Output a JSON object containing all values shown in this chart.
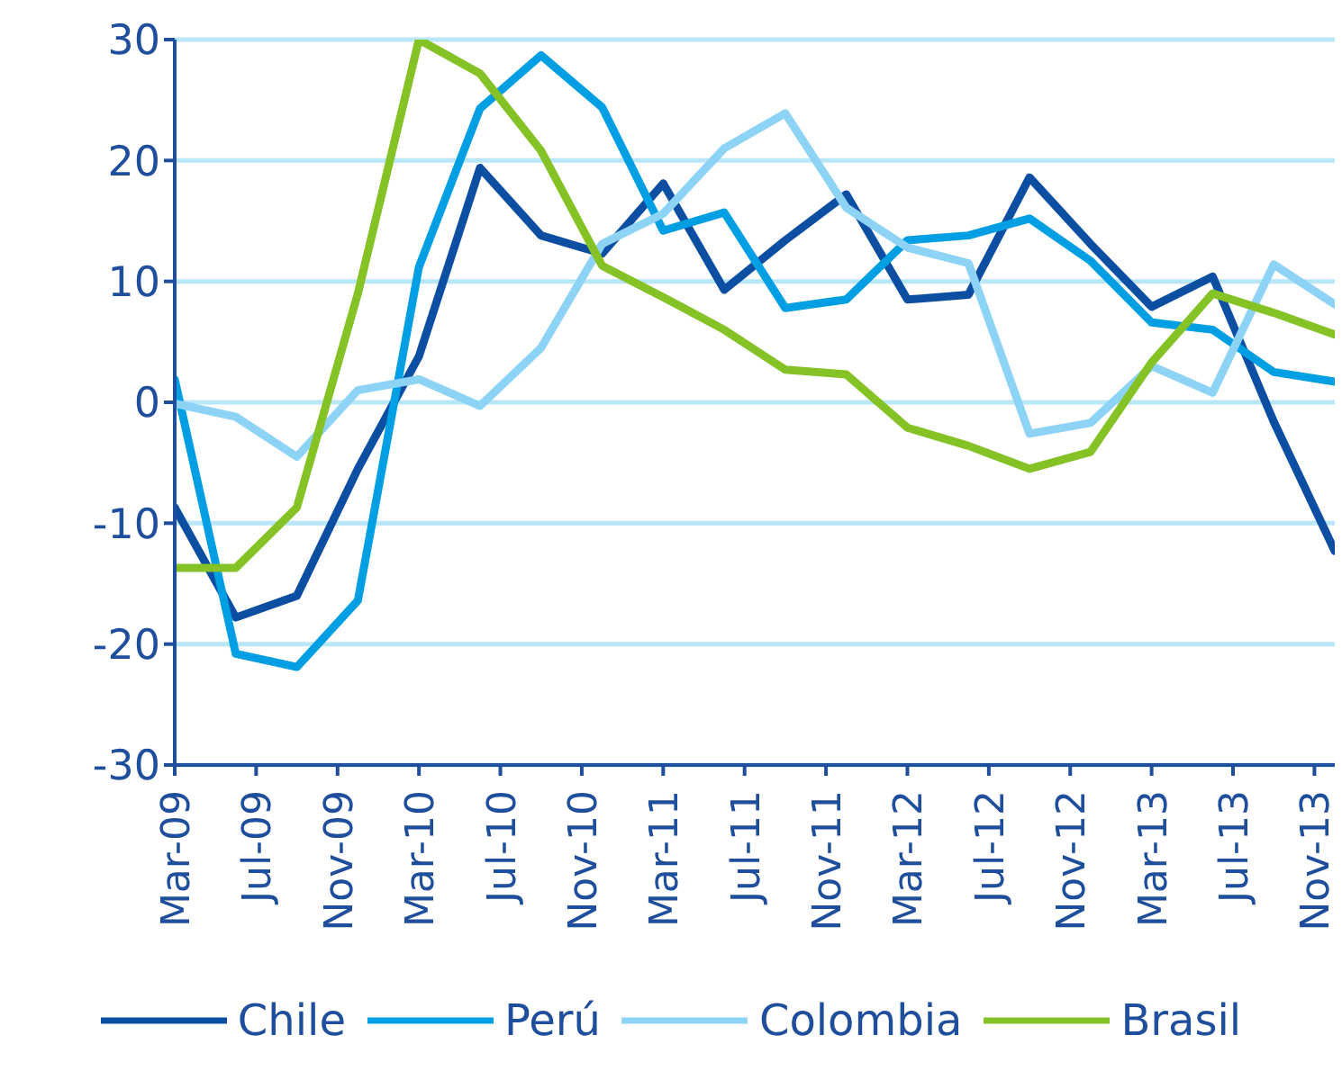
{
  "chart_data": {
    "type": "line",
    "x": [
      "2009-03",
      "2009-06",
      "2009-09",
      "2009-12",
      "2010-03",
      "2010-06",
      "2010-09",
      "2010-12",
      "2011-03",
      "2011-06",
      "2011-09",
      "2011-12",
      "2012-03",
      "2012-06",
      "2012-09",
      "2012-12",
      "2013-03",
      "2013-06",
      "2013-09",
      "2013-12"
    ],
    "series": [
      {
        "name": "Chile",
        "color": "#0b4ea2",
        "values": [
          -8.7,
          -17.8,
          -16,
          -5.5,
          3.8,
          19.4,
          13.8,
          12.3,
          18.1,
          9.3,
          13.4,
          17.2,
          8.5,
          8.9,
          18.6,
          13.1,
          7.9,
          10.4,
          -1.6,
          -12.3
        ]
      },
      {
        "name": "Perú",
        "color": "#009fe3",
        "values": [
          1.9,
          -20.8,
          -21.9,
          -16.4,
          11.2,
          24.3,
          28.7,
          24.4,
          14.2,
          15.7,
          7.8,
          8.5,
          13.4,
          13.8,
          15.2,
          11.7,
          6.6,
          6.0,
          2.5,
          1.7
        ]
      },
      {
        "name": "Colombia",
        "color": "#8dd3f5",
        "values": [
          -0.1,
          -1.2,
          -4.5,
          1.0,
          1.9,
          -0.3,
          4.5,
          13.1,
          15.6,
          21.0,
          23.9,
          16.1,
          12.8,
          11.5,
          -2.6,
          -1.7,
          3.0,
          0.8,
          11.4,
          8.1
        ]
      },
      {
        "name": "Brasil",
        "color": "#84c225",
        "values": [
          -13.7,
          -13.7,
          -8.7,
          9.0,
          30.0,
          27.2,
          20.8,
          11.3,
          8.7,
          6.0,
          2.7,
          2.3,
          -2.1,
          -3.6,
          -5.5,
          -4.1,
          3.3,
          9.0,
          7.4,
          5.6
        ]
      }
    ],
    "xlim": [
      "2009-03",
      "2013-12"
    ],
    "xticks": [
      {
        "value": "2009-03",
        "label": "Mar-09"
      },
      {
        "value": "2009-07",
        "label": "Jul-09"
      },
      {
        "value": "2009-11",
        "label": "Nov-09"
      },
      {
        "value": "2010-03",
        "label": "Mar-10"
      },
      {
        "value": "2010-07",
        "label": "Jul-10"
      },
      {
        "value": "2010-11",
        "label": "Nov-10"
      },
      {
        "value": "2011-03",
        "label": "Mar-11"
      },
      {
        "value": "2011-07",
        "label": "Jul-11"
      },
      {
        "value": "2011-11",
        "label": "Nov-11"
      },
      {
        "value": "2012-03",
        "label": "Mar-12"
      },
      {
        "value": "2012-07",
        "label": "Jul-12"
      },
      {
        "value": "2012-11",
        "label": "Nov-12"
      },
      {
        "value": "2013-03",
        "label": "Mar-13"
      },
      {
        "value": "2013-07",
        "label": "Jul-13"
      },
      {
        "value": "2013-11",
        "label": "Nov-13"
      }
    ],
    "ylim": [
      -30,
      30
    ],
    "yticks": [
      -30,
      -20,
      -10,
      0,
      10,
      20,
      30
    ],
    "grid": "y",
    "legend": "bottom",
    "marker": "none",
    "line_style": "solid"
  }
}
